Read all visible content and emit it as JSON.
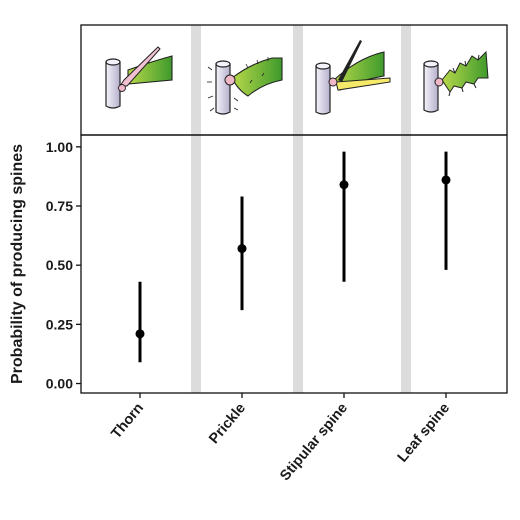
{
  "chart_data": {
    "type": "scatter",
    "categories": [
      "Thorn",
      "Prickle",
      "Stipular spine",
      "Leaf spine"
    ],
    "series": [
      {
        "estimates": [
          0.21,
          0.57,
          0.84,
          0.86
        ],
        "lower": [
          0.09,
          0.31,
          0.43,
          0.48
        ],
        "upper": [
          0.43,
          0.79,
          0.98,
          0.98
        ]
      }
    ],
    "ylabel": "Probability of producing spines",
    "xlabel": "",
    "yticks": [
      "0.00",
      "0.25",
      "0.50",
      "0.75",
      "1.00"
    ],
    "ytick_values": [
      0,
      0.25,
      0.5,
      0.75,
      1.0
    ],
    "ylim": [
      -0.04,
      1.05
    ],
    "grid": false,
    "separator_color": "#dcdcdc",
    "point_color": "#000000",
    "illustrations": [
      "thorn-illustration",
      "prickle-illustration",
      "stipular-spine-illustration",
      "leaf-spine-illustration"
    ]
  }
}
